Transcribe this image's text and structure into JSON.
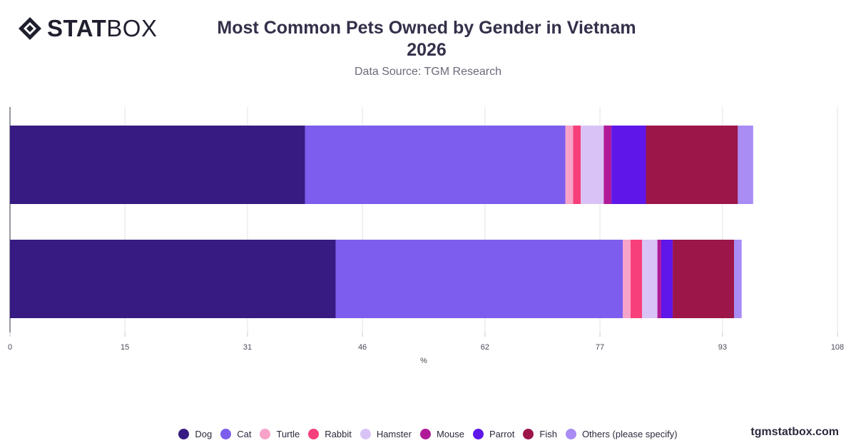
{
  "brand": {
    "logo_bold": "STAT",
    "logo_light": "BOX",
    "watermark": "tgmstatbox.com"
  },
  "colors": {
    "Dog": "#371b82",
    "Cat": "#7d5ded",
    "Turtle": "#f7a3c8",
    "Rabbit": "#f73f7c",
    "Hamster": "#d9c3f6",
    "Mouse": "#b01a99",
    "Parrot": "#5e16e9",
    "Fish": "#9c164a",
    "Others (please specify)": "#a98cf4"
  },
  "chart_data": {
    "type": "bar",
    "orientation": "horizontal",
    "stacked": true,
    "title_line1": "Most Common Pets Owned by Gender in Vietnam",
    "title_line2": "2026",
    "subtitle": "Data Source: TGM Research",
    "xlabel": "%",
    "ylabel": "",
    "xlim": [
      0,
      108
    ],
    "xticks": [
      "0",
      "15",
      "31",
      "46",
      "62",
      "77",
      "93",
      "108"
    ],
    "grid": true,
    "legend_position": "bottom",
    "categories": [
      "",
      ""
    ],
    "series": [
      {
        "name": "Dog",
        "values": [
          38.5,
          42.5
        ]
      },
      {
        "name": "Cat",
        "values": [
          34.0,
          37.5
        ]
      },
      {
        "name": "Turtle",
        "values": [
          1.0,
          1.0
        ]
      },
      {
        "name": "Rabbit",
        "values": [
          1.0,
          1.5
        ]
      },
      {
        "name": "Hamster",
        "values": [
          3.0,
          2.0
        ]
      },
      {
        "name": "Mouse",
        "values": [
          1.0,
          0.5
        ]
      },
      {
        "name": "Parrot",
        "values": [
          4.5,
          1.5
        ]
      },
      {
        "name": "Fish",
        "values": [
          12.0,
          8.0
        ]
      },
      {
        "name": "Others (please specify)",
        "values": [
          2.0,
          1.0
        ]
      }
    ]
  }
}
